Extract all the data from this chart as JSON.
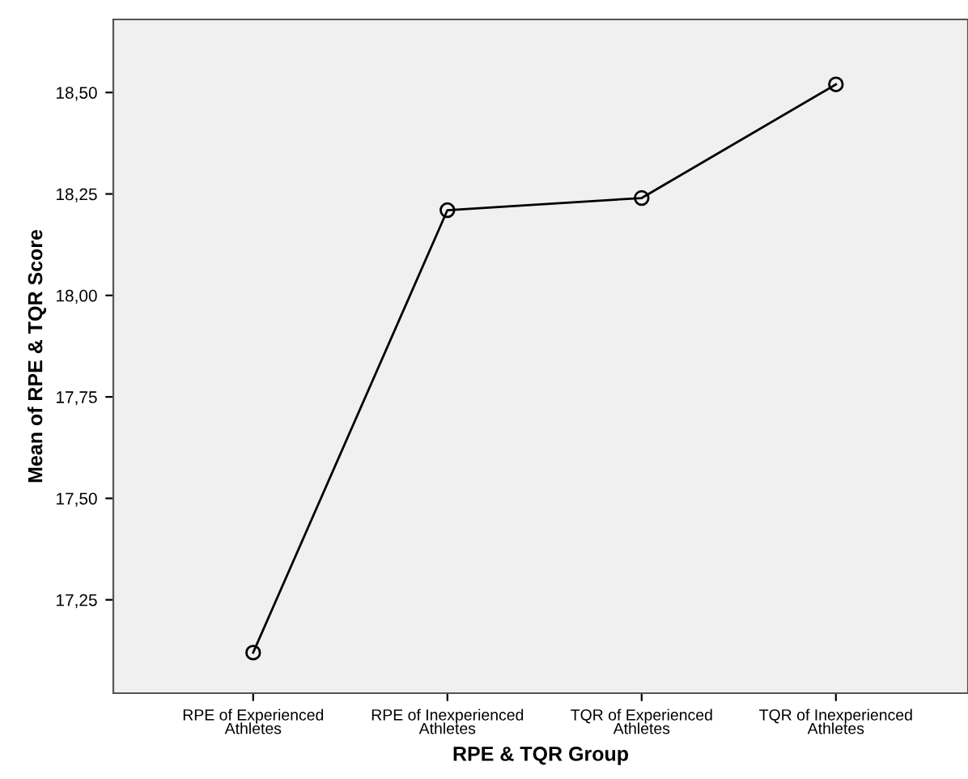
{
  "chart_data": {
    "type": "line",
    "xlabel": "RPE & TQR Group",
    "ylabel": "Mean of RPE & TQR Score",
    "categories": [
      "RPE of Experienced\nAthletes",
      "RPE of Inexperienced\nAthletes",
      "TQR of Experienced\nAthletes",
      "TQR of Inexperienced\nAthletes"
    ],
    "values": [
      17.12,
      18.21,
      18.24,
      18.52
    ],
    "color": "#000000",
    "marker": "circle",
    "line_style": "solid",
    "ylim": [
      17.02,
      18.68
    ],
    "yticks": [
      {
        "value": 17.25,
        "label": "17,25"
      },
      {
        "value": 17.5,
        "label": "17,50"
      },
      {
        "value": 17.75,
        "label": "17,75"
      },
      {
        "value": 18.0,
        "label": "18,00"
      },
      {
        "value": 18.25,
        "label": "18,25"
      },
      {
        "value": 18.5,
        "label": "18,50"
      }
    ],
    "grid": false,
    "legend": false
  }
}
